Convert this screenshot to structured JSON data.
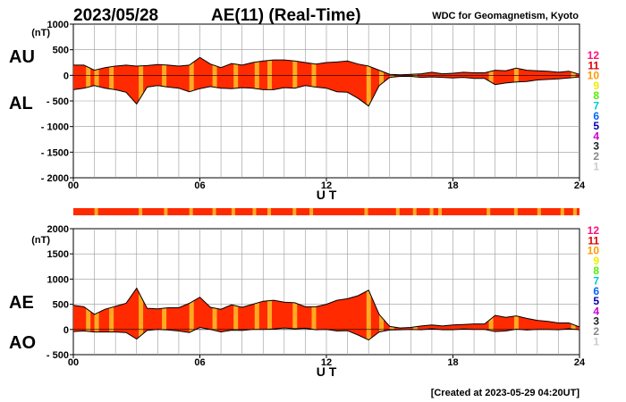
{
  "header": {
    "date": "2023/05/28",
    "title": "AE(11) (Real-Time)",
    "source": "WDC for Geomagnetism, Kyoto"
  },
  "footer": {
    "created": "[Created at 2023-05-29 04:20UT]"
  },
  "colors": {
    "fill": "#ff2a00",
    "highlight": "#ffaa22",
    "grid": "#999999",
    "outline": "#000000",
    "strip": "#ff2a00"
  },
  "legend_levels": [
    {
      "label": "12",
      "color": "#ff1177"
    },
    {
      "label": "11",
      "color": "#dd0000"
    },
    {
      "label": "10",
      "color": "#ff9900"
    },
    {
      "label": "9",
      "color": "#eeee00"
    },
    {
      "label": "8",
      "color": "#55ee00"
    },
    {
      "label": "7",
      "color": "#00cccc"
    },
    {
      "label": "6",
      "color": "#0066ff"
    },
    {
      "label": "5",
      "color": "#0000aa"
    },
    {
      "label": "4",
      "color": "#cc00cc"
    },
    {
      "label": "3",
      "color": "#222222"
    },
    {
      "label": "2",
      "color": "#888888"
    },
    {
      "label": "1",
      "color": "#cccccc"
    }
  ],
  "chart_data": [
    {
      "type": "area",
      "name": "AU/AL",
      "upper_label": "AU",
      "lower_label": "AL",
      "unit": "(nT)",
      "xlabel": "U T",
      "xlim": [
        0,
        24
      ],
      "ylim": [
        -2000,
        1000
      ],
      "xticks": [
        "00",
        "06",
        "12",
        "18",
        "24"
      ],
      "yticks": [
        "1000",
        "500",
        "0",
        "- 500",
        "- 1000",
        "- 1500",
        "- 2000"
      ],
      "grid": true,
      "x": [
        0,
        0.5,
        1,
        1.5,
        2,
        2.5,
        3,
        3.5,
        4,
        4.5,
        5,
        5.5,
        6,
        6.5,
        7,
        7.5,
        8,
        8.5,
        9,
        9.5,
        10,
        10.5,
        11,
        11.5,
        12,
        12.5,
        13,
        13.5,
        14,
        14.5,
        15,
        15.5,
        16,
        16.5,
        17,
        17.5,
        18,
        18.5,
        19,
        19.5,
        20,
        20.5,
        21,
        21.5,
        22,
        22.5,
        23,
        23.5,
        24
      ],
      "au": [
        200,
        200,
        100,
        150,
        180,
        200,
        180,
        190,
        210,
        200,
        180,
        200,
        350,
        220,
        150,
        230,
        200,
        250,
        280,
        300,
        300,
        280,
        250,
        220,
        250,
        260,
        280,
        220,
        180,
        100,
        20,
        10,
        20,
        30,
        60,
        30,
        40,
        60,
        50,
        50,
        100,
        90,
        140,
        100,
        90,
        80,
        60,
        80,
        20
      ],
      "al": [
        -280,
        -250,
        -200,
        -250,
        -280,
        -330,
        -560,
        -230,
        -200,
        -230,
        -250,
        -320,
        -260,
        -220,
        -250,
        -260,
        -240,
        -250,
        -280,
        -280,
        -240,
        -250,
        -200,
        -230,
        -250,
        -320,
        -330,
        -450,
        -600,
        -200,
        -40,
        -20,
        -20,
        -40,
        -30,
        -40,
        -50,
        -40,
        -60,
        -60,
        -180,
        -150,
        -130,
        -120,
        -90,
        -80,
        -70,
        -50,
        -30
      ]
    },
    {
      "type": "area",
      "name": "AE/AO",
      "upper_label": "AE",
      "lower_label": "AO",
      "unit": "(nT)",
      "xlabel": "U T",
      "xlim": [
        0,
        24
      ],
      "ylim": [
        -500,
        2000
      ],
      "xticks": [
        "00",
        "06",
        "12",
        "18",
        "24"
      ],
      "yticks": [
        "2000",
        "1500",
        "1000",
        "500",
        "0",
        "- 500"
      ],
      "grid": true,
      "x": [
        0,
        0.5,
        1,
        1.5,
        2,
        2.5,
        3,
        3.5,
        4,
        4.5,
        5,
        5.5,
        6,
        6.5,
        7,
        7.5,
        8,
        8.5,
        9,
        9.5,
        10,
        10.5,
        11,
        11.5,
        12,
        12.5,
        13,
        13.5,
        14,
        14.5,
        15,
        15.5,
        16,
        16.5,
        17,
        17.5,
        18,
        18.5,
        19,
        19.5,
        20,
        20.5,
        21,
        21.5,
        22,
        22.5,
        23,
        23.5,
        24
      ],
      "ae": [
        480,
        450,
        300,
        400,
        460,
        520,
        820,
        420,
        410,
        430,
        430,
        520,
        640,
        440,
        400,
        490,
        440,
        500,
        560,
        580,
        540,
        530,
        450,
        450,
        500,
        580,
        610,
        670,
        780,
        300,
        60,
        30,
        40,
        70,
        90,
        70,
        90,
        100,
        110,
        110,
        280,
        240,
        270,
        220,
        180,
        160,
        130,
        130,
        50
      ],
      "ao": [
        -40,
        -30,
        -50,
        -50,
        -50,
        -60,
        -190,
        -20,
        0,
        -10,
        -30,
        -60,
        40,
        0,
        -50,
        -15,
        -20,
        0,
        0,
        10,
        30,
        15,
        25,
        -5,
        0,
        -30,
        -25,
        -110,
        -210,
        -50,
        -10,
        -5,
        0,
        -5,
        15,
        -5,
        -5,
        10,
        0,
        0,
        -40,
        -30,
        5,
        -10,
        0,
        0,
        -5,
        15,
        -5
      ]
    }
  ],
  "strip_highlights": [
    1.0,
    3.1,
    4.3,
    5.5,
    6.6,
    7.5,
    8.5,
    9.2,
    10.4,
    11.2,
    13.8,
    15.3,
    16.1,
    16.9,
    17.3,
    19.6,
    20.9,
    22.0,
    23.1,
    23.7
  ],
  "highlights": [
    0.6,
    1.0,
    1.7,
    3.1,
    4.2,
    5.5,
    6.6,
    7.6,
    8.6,
    9.2,
    10.4,
    11.3,
    13.9,
    14.5,
    15.0,
    16.1,
    19.7,
    20.9,
    23.6
  ]
}
